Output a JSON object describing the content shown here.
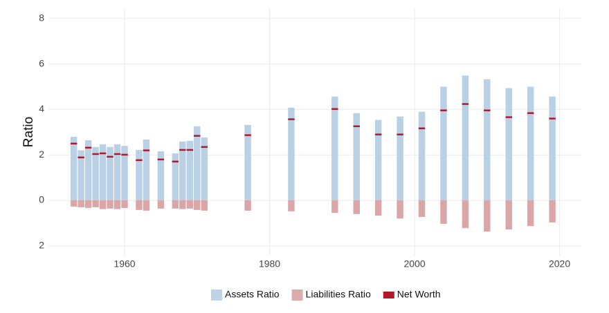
{
  "chart_data": {
    "type": "bar",
    "y_label": "Ratio",
    "x": [
      1953,
      1954,
      1955,
      1956,
      1957,
      1958,
      1959,
      1960,
      1962,
      1963,
      1965,
      1967,
      1968,
      1969,
      1970,
      1971,
      1977,
      1983,
      1989,
      1992,
      1995,
      1998,
      2001,
      2004,
      2007,
      2010,
      2013,
      2016,
      2019
    ],
    "series": [
      {
        "name": "Assets Ratio",
        "color": "#b3cce2",
        "mark": "bar",
        "values": [
          2.8,
          2.2,
          2.65,
          2.35,
          2.47,
          2.35,
          2.47,
          2.4,
          2.22,
          2.68,
          2.16,
          2.07,
          2.59,
          2.62,
          3.26,
          2.77,
          3.32,
          4.08,
          4.57,
          3.84,
          3.54,
          3.69,
          3.9,
          5.0,
          5.49,
          5.33,
          4.94,
          5.0,
          4.57
        ]
      },
      {
        "name": "Liabilities Ratio",
        "color": "#d69c9e",
        "mark": "bar",
        "values": [
          -0.27,
          -0.3,
          -0.33,
          -0.3,
          -0.38,
          -0.36,
          -0.38,
          -0.33,
          -0.42,
          -0.45,
          -0.36,
          -0.36,
          -0.38,
          -0.36,
          -0.42,
          -0.45,
          -0.45,
          -0.48,
          -0.55,
          -0.6,
          -0.67,
          -0.8,
          -0.73,
          -1.03,
          -1.22,
          -1.37,
          -1.28,
          -1.13,
          -0.97
        ]
      },
      {
        "name": "Net Worth",
        "color": "#b2182b",
        "mark": "tick",
        "values": [
          2.5,
          1.89,
          2.32,
          2.04,
          2.07,
          1.92,
          2.04,
          2.01,
          1.77,
          2.2,
          1.8,
          1.71,
          2.22,
          2.22,
          2.84,
          2.35,
          2.87,
          3.57,
          4.02,
          3.26,
          2.9,
          2.9,
          3.17,
          3.96,
          4.24,
          3.96,
          3.66,
          3.84,
          3.6
        ]
      }
    ],
    "xlim": [
      1949.5,
      2023.0
    ],
    "xticks": [
      1960,
      1980,
      2000,
      2020
    ],
    "ylim": [
      -2.43,
      8.45
    ],
    "yticks": [
      {
        "value": -2,
        "label": "2"
      },
      0,
      2,
      4,
      6,
      8
    ],
    "grid": true,
    "legend": "bottom"
  }
}
